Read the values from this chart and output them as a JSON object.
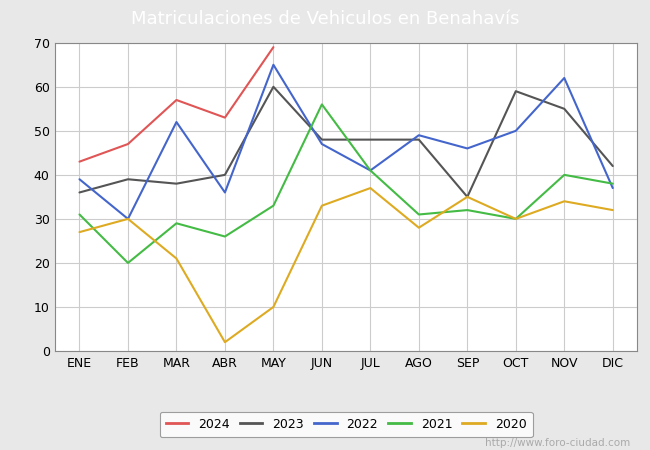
{
  "title": "Matriculaciones de Vehiculos en Benahavís",
  "months": [
    "ENE",
    "FEB",
    "MAR",
    "ABR",
    "MAY",
    "JUN",
    "JUL",
    "AGO",
    "SEP",
    "OCT",
    "NOV",
    "DIC"
  ],
  "series": {
    "2024": [
      43,
      47,
      57,
      53,
      69,
      null,
      null,
      null,
      null,
      null,
      null,
      null
    ],
    "2023": [
      36,
      39,
      38,
      40,
      60,
      48,
      48,
      48,
      35,
      59,
      55,
      42
    ],
    "2022": [
      39,
      30,
      52,
      36,
      65,
      47,
      41,
      49,
      46,
      50,
      62,
      37
    ],
    "2021": [
      31,
      20,
      29,
      26,
      33,
      56,
      41,
      31,
      32,
      30,
      40,
      38
    ],
    "2020": [
      27,
      30,
      21,
      2,
      10,
      33,
      37,
      28,
      35,
      30,
      34,
      32
    ]
  },
  "colors": {
    "2024": "#e05555",
    "2023": "#555555",
    "2022": "#4466cc",
    "2021": "#44bb44",
    "2020": "#ddaa22"
  },
  "ylim": [
    0,
    70
  ],
  "yticks": [
    0,
    10,
    20,
    30,
    40,
    50,
    60,
    70
  ],
  "grid_color": "#cccccc",
  "outer_bg": "#e8e8e8",
  "plot_bg": "#e8e8e8",
  "title_bg": "#4a8fd4",
  "title_color": "#ffffff",
  "title_fontsize": 13,
  "footer_text": "http://www.foro-ciudad.com",
  "footer_color": "#aaaaaa",
  "line_width": 1.5
}
